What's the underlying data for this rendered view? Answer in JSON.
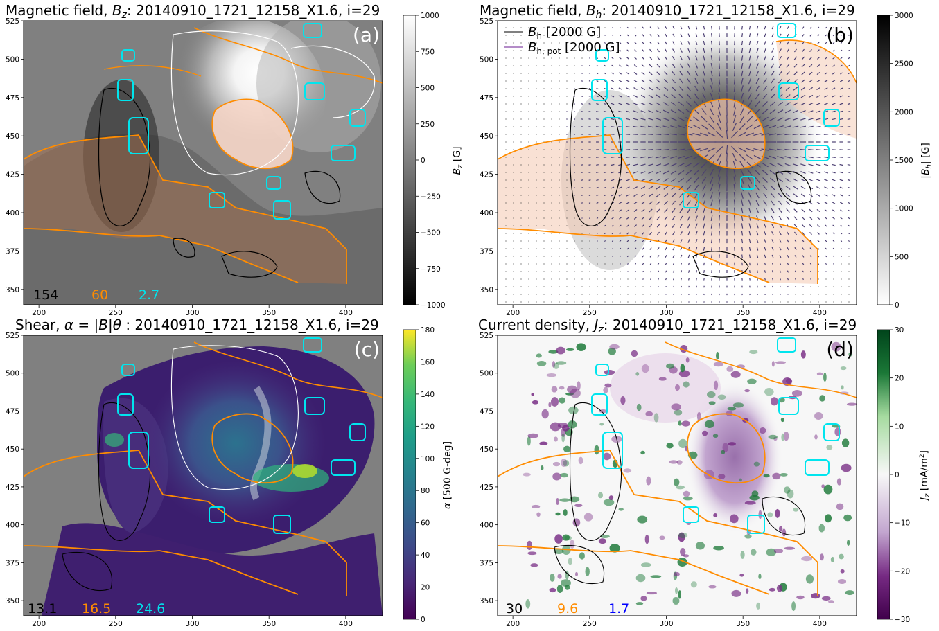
{
  "panels": {
    "a": {
      "title": "Magnetic field, B_z: 20140910_1721_12158_X1.6, i=29",
      "title_parts": [
        "Magnetic field, ",
        "B",
        "z",
        ": 20140910_1721_12158_X1.6, i=29"
      ],
      "letter": "(a)",
      "colorbar_label": "B_z [G]",
      "colorbar_ticks": [
        "1000",
        "750",
        "500",
        "250",
        "0",
        "−250",
        "−500",
        "−750",
        "−1000"
      ],
      "stats": [
        "154",
        "60",
        "2.7"
      ],
      "stat_colors": [
        "#000000",
        "#ff8c00",
        "#00e5ee"
      ]
    },
    "b": {
      "title": "Magnetic field, B_h: 20140910_1721_12158_X1.6, i=29",
      "title_parts": [
        "Magnetic field, ",
        "B",
        "h",
        ": 20140910_1721_12158_X1.6, i=29"
      ],
      "letter": "(b)",
      "colorbar_label": "|B_h| [G]",
      "colorbar_ticks": [
        "3000",
        "2500",
        "2000",
        "1500",
        "1000",
        "500",
        "0"
      ],
      "legend": [
        {
          "label": "B_h [2000 G]",
          "sym": "B",
          "sub": "h",
          "rest": " [2000 G]",
          "color": "#808080"
        },
        {
          "label": "B_h,pot [2000 G]",
          "sym": "B",
          "sub": "h, pot",
          "rest": " [2000 G]",
          "color": "#b48cc8"
        }
      ]
    },
    "c": {
      "title": "Shear, α = |B|θ : 20140910_1721_12158_X1.6, i=29",
      "title_parts": [
        "Shear, ",
        "α = |B|θ",
        " : 20140910_1721_12158_X1.6, i=29"
      ],
      "letter": "(c)",
      "colorbar_label": "α [500 G-deg]",
      "colorbar_ticks": [
        "180",
        "160",
        "140",
        "120",
        "100",
        "80",
        "60",
        "40",
        "20",
        "0"
      ],
      "stats": [
        "13.1",
        "16.5",
        "24.6"
      ],
      "stat_colors": [
        "#000000",
        "#ff8c00",
        "#00e5ee"
      ]
    },
    "d": {
      "title": "Current density, J_z: 20140910_1721_12158_X1.6, i=29",
      "title_parts": [
        "Current density, ",
        "J",
        "z",
        ": 20140910_1721_12158_X1.6, i=29"
      ],
      "letter": "(d)",
      "colorbar_label": "J_z [mA/m²]",
      "colorbar_ticks": [
        "30",
        "20",
        "10",
        "0",
        "−10",
        "−20",
        "−30"
      ],
      "stats": [
        "30",
        "9.6",
        "1.7"
      ],
      "stat_colors": [
        "#000000",
        "#ff8c00",
        "#0000ff"
      ]
    }
  },
  "x_ticks": [
    "200",
    "250",
    "300",
    "350",
    "400"
  ],
  "y_ticks": [
    "525",
    "500",
    "475",
    "450",
    "425",
    "400",
    "375",
    "350"
  ],
  "colors": {
    "orange_contour": "#ff8c00",
    "cyan_contour": "#00e5ee",
    "neutral_gray": "#808080"
  },
  "chart_data": [
    {
      "type": "heatmap",
      "panel": "a",
      "title": "Magnetic field, B_z: 20140910_1721_12158_X1.6, i=29",
      "xlim": [
        190,
        424
      ],
      "ylim": [
        340,
        525
      ],
      "x_ticks": [
        200,
        250,
        300,
        350,
        400
      ],
      "y_ticks": [
        350,
        375,
        400,
        425,
        450,
        475,
        500,
        525
      ],
      "colorbar": {
        "label": "B_z [G]",
        "range": [
          -1000,
          1000
        ],
        "colormap": "gray"
      },
      "annotations": [
        "154",
        "60",
        "2.7"
      ]
    },
    {
      "type": "heatmap",
      "panel": "b",
      "title": "Magnetic field, B_h: 20140910_1721_12158_X1.6, i=29",
      "xlim": [
        190,
        424
      ],
      "ylim": [
        340,
        525
      ],
      "x_ticks": [
        200,
        250,
        300,
        350,
        400
      ],
      "y_ticks": [
        350,
        375,
        400,
        425,
        450,
        475,
        500,
        525
      ],
      "colorbar": {
        "label": "|B_h| [G]",
        "range": [
          0,
          3000
        ],
        "colormap": "gray_r"
      },
      "legend": [
        "B_h [2000 G]",
        "B_h,pot [2000 G]"
      ],
      "legend_position": "top-left"
    },
    {
      "type": "heatmap",
      "panel": "c",
      "title": "Shear, α = |B|θ : 20140910_1721_12158_X1.6, i=29",
      "xlim": [
        190,
        424
      ],
      "ylim": [
        340,
        525
      ],
      "x_ticks": [
        200,
        250,
        300,
        350,
        400
      ],
      "y_ticks": [
        350,
        375,
        400,
        425,
        450,
        475,
        500,
        525
      ],
      "colorbar": {
        "label": "α [500 G-deg]",
        "range": [
          0,
          180
        ],
        "colormap": "viridis"
      },
      "annotations": [
        "13.1",
        "16.5",
        "24.6"
      ]
    },
    {
      "type": "heatmap",
      "panel": "d",
      "title": "Current density, J_z: 20140910_1721_12158_X1.6, i=29",
      "xlim": [
        190,
        424
      ],
      "ylim": [
        340,
        525
      ],
      "x_ticks": [
        200,
        250,
        300,
        350,
        400
      ],
      "y_ticks": [
        350,
        375,
        400,
        425,
        450,
        475,
        500,
        525
      ],
      "colorbar": {
        "label": "J_z [mA/m²]",
        "range": [
          -30,
          30
        ],
        "colormap": "PRGn"
      },
      "annotations": [
        "30",
        "9.6",
        "1.7"
      ]
    }
  ]
}
